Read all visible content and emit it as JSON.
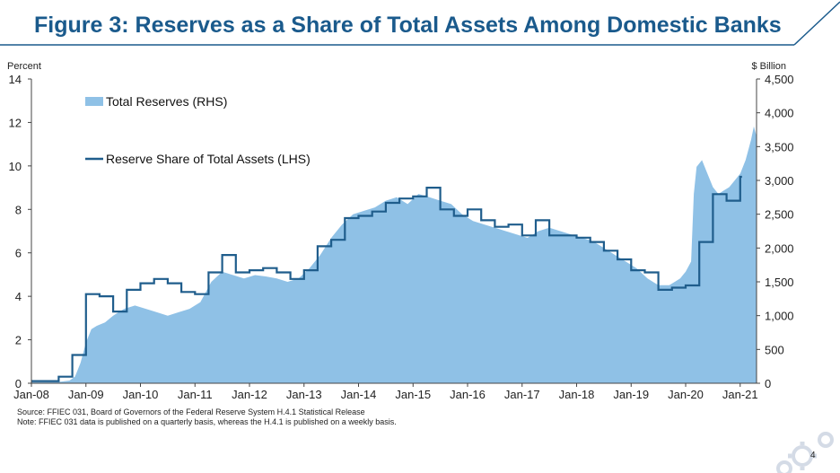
{
  "slide": {
    "title": "Figure 3: Reserves as a Share of Total Assets Among Domestic Banks",
    "source_line": "Source: FFIEC 031, Board of Governors of the Federal Reserve System H.4.1 Statistical Release",
    "note_line": "Note: FFIEC 031 data is published on a quarterly basis, whereas the H.4.1 is published on a weekly basis.",
    "page_number": "4",
    "colors": {
      "title": "#1a5a8c",
      "area": "#8fc1e6",
      "line": "#1f5d8c",
      "axis": "#444444"
    }
  },
  "chart_data": {
    "type": "area",
    "title": "",
    "ylabel_left": "Percent",
    "ylabel_right": "$ Billion",
    "ylim_left": [
      0,
      14
    ],
    "ylim_right": [
      0,
      4500
    ],
    "yticks_left": [
      "0",
      "2",
      "4",
      "6",
      "8",
      "10",
      "12",
      "14"
    ],
    "yticks_right": [
      "0",
      "500",
      "1,000",
      "1,500",
      "2,000",
      "2,500",
      "3,000",
      "3,500",
      "4,000",
      "4,500"
    ],
    "xticks": [
      "Jan-08",
      "Jan-09",
      "Jan-10",
      "Jan-11",
      "Jan-12",
      "Jan-13",
      "Jan-14",
      "Jan-15",
      "Jan-16",
      "Jan-17",
      "Jan-18",
      "Jan-19",
      "Jan-20",
      "Jan-21"
    ],
    "xlim": [
      2008.0,
      2021.3
    ],
    "grid": false,
    "legend_position": "top-left",
    "series": [
      {
        "name": "Total Reserves (RHS)",
        "axis": "right",
        "style": "area",
        "x": [
          2008.0,
          2008.5,
          2008.7,
          2008.8,
          2008.9,
          2009.0,
          2009.1,
          2009.2,
          2009.35,
          2009.5,
          2009.7,
          2009.9,
          2010.1,
          2010.3,
          2010.5,
          2010.7,
          2010.9,
          2011.1,
          2011.3,
          2011.5,
          2011.7,
          2011.9,
          2012.1,
          2012.3,
          2012.5,
          2012.7,
          2012.9,
          2013.1,
          2013.3,
          2013.5,
          2013.7,
          2013.9,
          2014.1,
          2014.3,
          2014.5,
          2014.7,
          2014.9,
          2015.1,
          2015.3,
          2015.5,
          2015.7,
          2015.9,
          2016.1,
          2016.3,
          2016.5,
          2016.7,
          2016.9,
          2017.1,
          2017.3,
          2017.5,
          2017.7,
          2017.9,
          2018.1,
          2018.3,
          2018.5,
          2018.7,
          2018.9,
          2019.1,
          2019.3,
          2019.5,
          2019.7,
          2019.8,
          2019.9,
          2020.0,
          2020.1,
          2020.15,
          2020.2,
          2020.3,
          2020.4,
          2020.5,
          2020.6,
          2020.7,
          2020.8,
          2020.9,
          2021.0,
          2021.1,
          2021.2,
          2021.25,
          2021.3
        ],
        "values": [
          15,
          20,
          40,
          100,
          300,
          600,
          800,
          850,
          900,
          1000,
          1100,
          1150,
          1100,
          1050,
          1000,
          1050,
          1100,
          1200,
          1500,
          1650,
          1600,
          1550,
          1600,
          1580,
          1550,
          1500,
          1550,
          1700,
          1900,
          2150,
          2350,
          2500,
          2550,
          2600,
          2700,
          2750,
          2650,
          2800,
          2750,
          2700,
          2650,
          2500,
          2400,
          2350,
          2300,
          2250,
          2200,
          2150,
          2250,
          2300,
          2250,
          2200,
          2150,
          2100,
          2000,
          1900,
          1800,
          1700,
          1550,
          1450,
          1450,
          1500,
          1550,
          1650,
          1800,
          2800,
          3200,
          3300,
          3100,
          2900,
          2800,
          2850,
          2900,
          3000,
          3100,
          3300,
          3600,
          3800,
          3650
        ]
      },
      {
        "name": "Reserve Share of Total Assets (LHS)",
        "axis": "left",
        "style": "step-line",
        "x": [
          2008.0,
          2008.5,
          2008.75,
          2009.0,
          2009.25,
          2009.5,
          2009.75,
          2010.0,
          2010.25,
          2010.5,
          2010.75,
          2011.0,
          2011.25,
          2011.5,
          2011.75,
          2012.0,
          2012.25,
          2012.5,
          2012.75,
          2013.0,
          2013.25,
          2013.5,
          2013.75,
          2014.0,
          2014.25,
          2014.5,
          2014.75,
          2015.0,
          2015.25,
          2015.5,
          2015.75,
          2016.0,
          2016.25,
          2016.5,
          2016.75,
          2017.0,
          2017.25,
          2017.5,
          2017.75,
          2018.0,
          2018.25,
          2018.5,
          2018.75,
          2019.0,
          2019.25,
          2019.5,
          2019.75,
          2020.0,
          2020.25,
          2020.5,
          2020.75,
          2021.0
        ],
        "values": [
          0.1,
          0.3,
          1.3,
          4.1,
          4.0,
          3.3,
          4.3,
          4.6,
          4.8,
          4.6,
          4.2,
          4.1,
          5.1,
          5.9,
          5.1,
          5.2,
          5.3,
          5.1,
          4.8,
          5.2,
          6.3,
          6.6,
          7.6,
          7.7,
          7.9,
          8.3,
          8.5,
          8.6,
          9.0,
          8.0,
          7.7,
          8.0,
          7.5,
          7.2,
          7.3,
          6.8,
          7.5,
          6.8,
          6.8,
          6.7,
          6.5,
          6.1,
          5.7,
          5.2,
          5.1,
          4.3,
          4.4,
          4.5,
          6.5,
          8.7,
          8.4,
          9.5
        ]
      }
    ]
  }
}
